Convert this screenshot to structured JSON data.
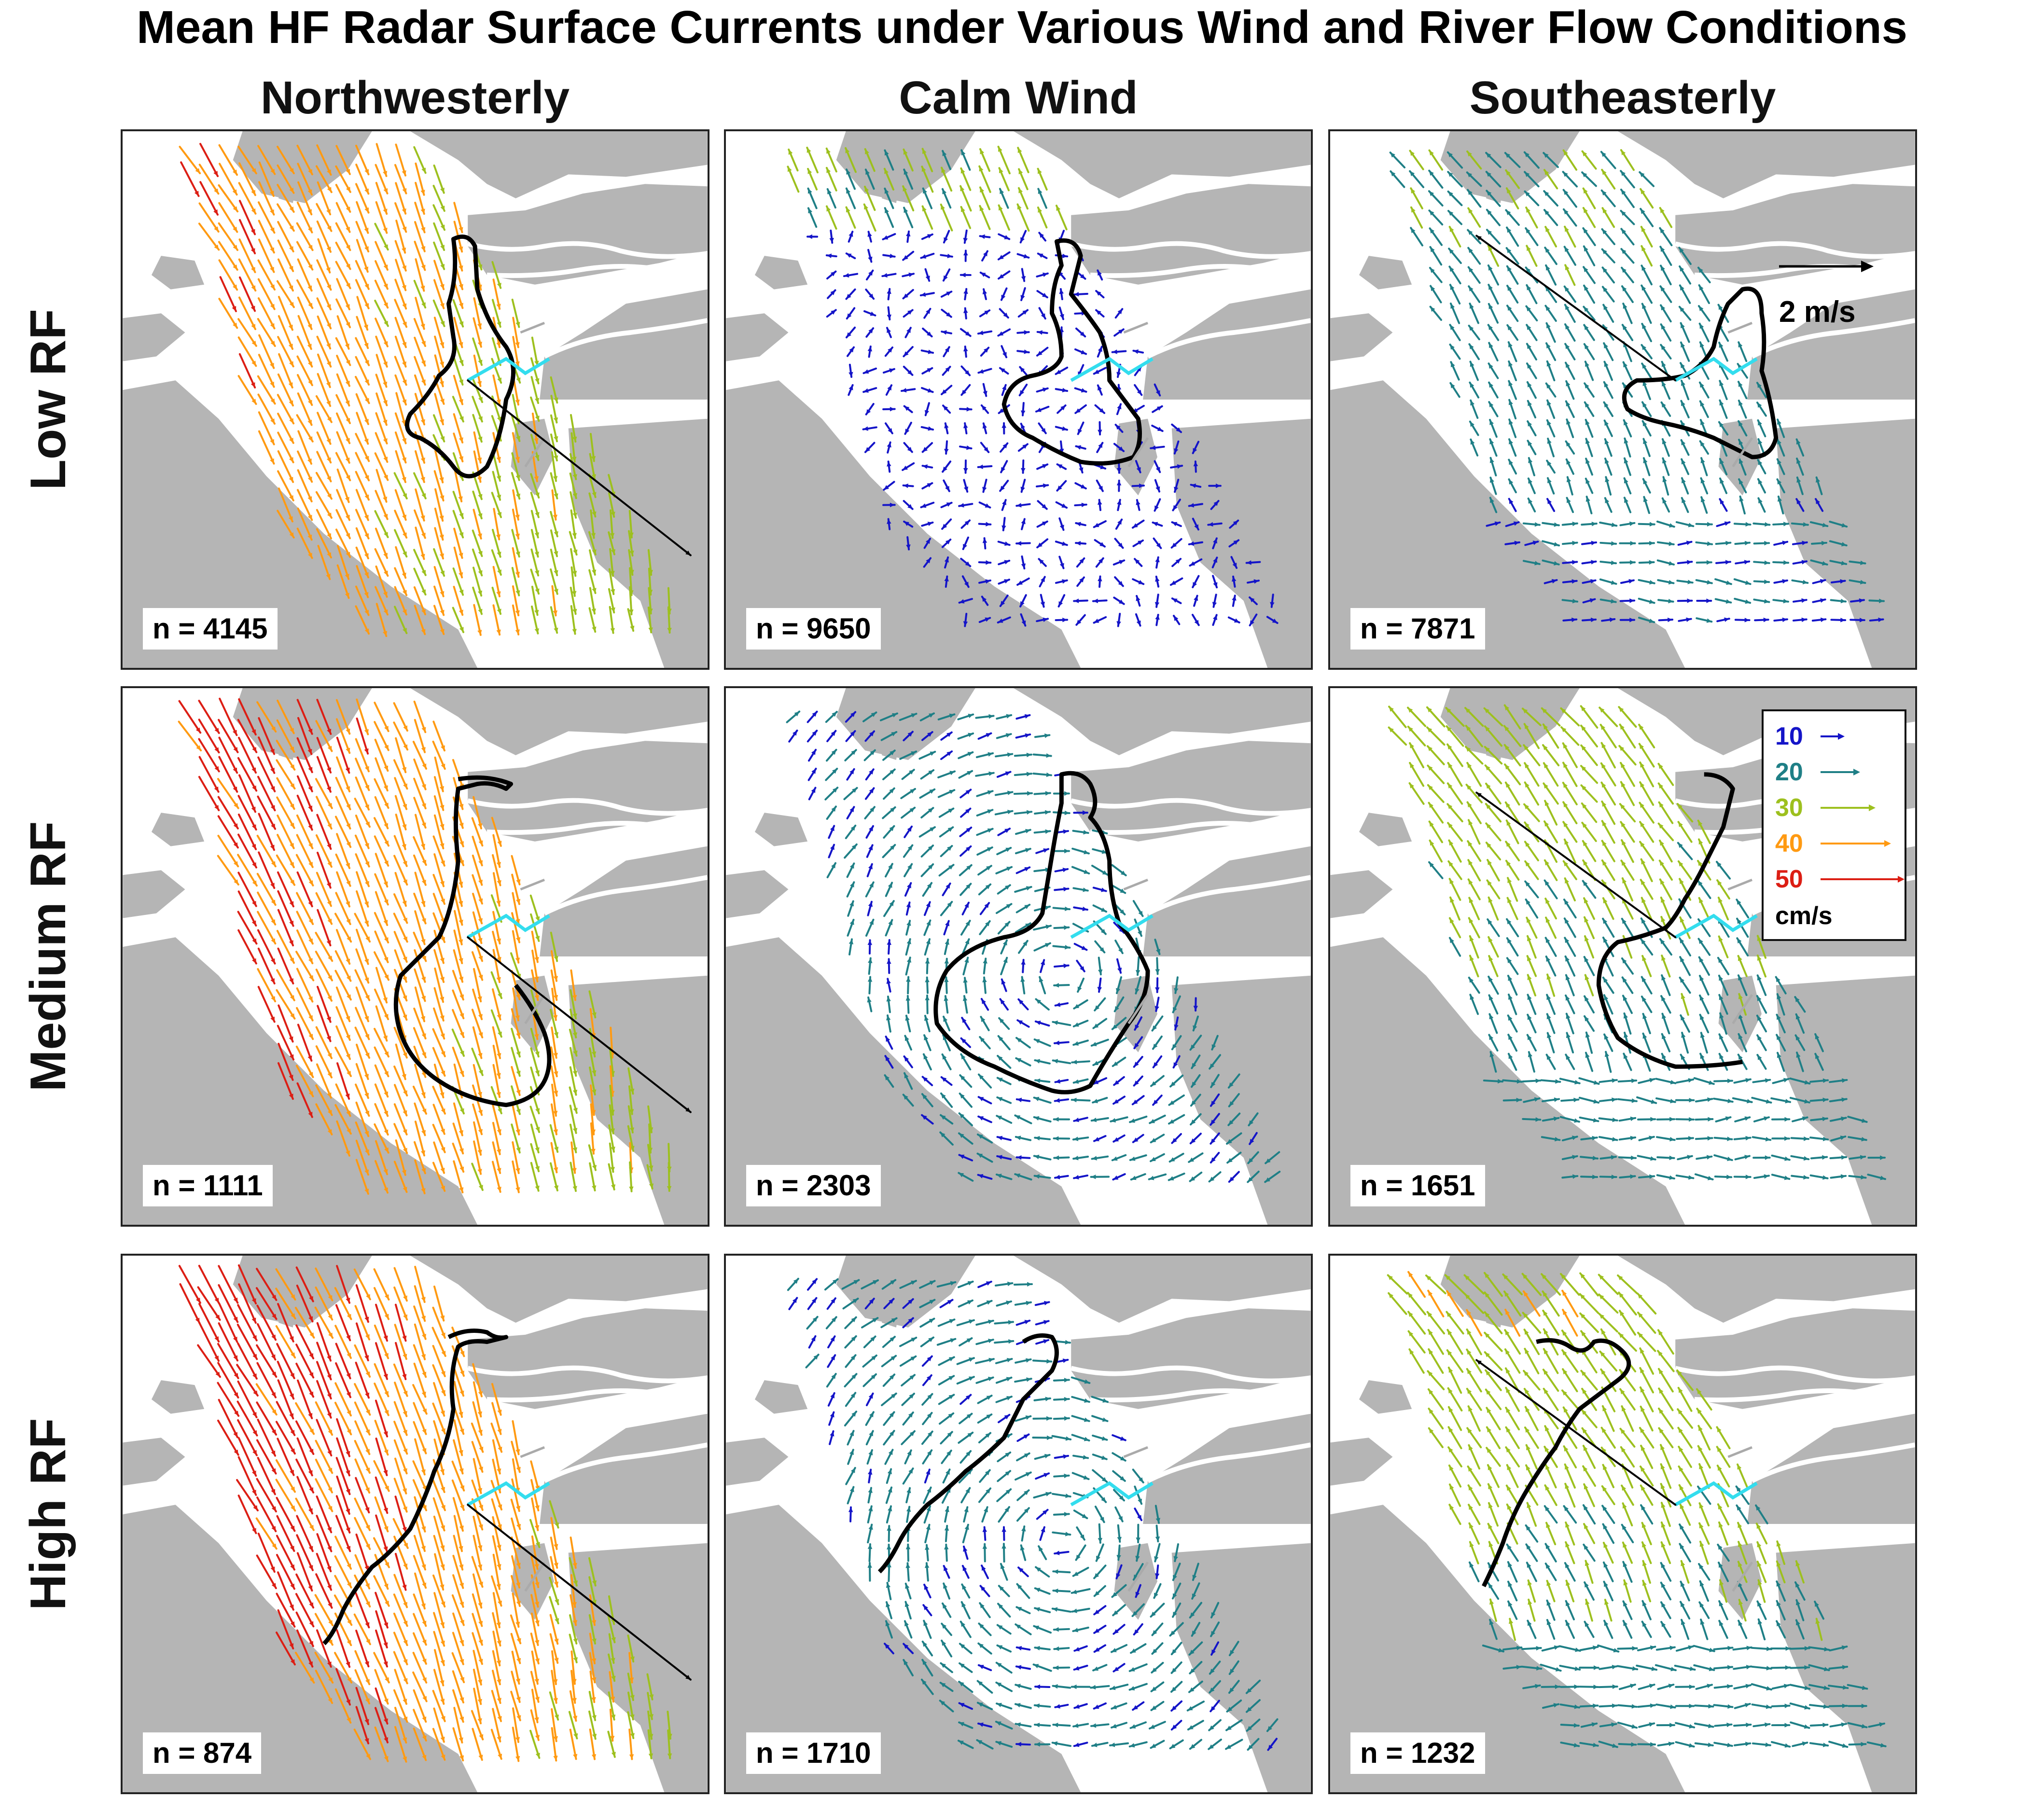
{
  "title": "Mean HF Radar Surface Currents under Various Wind and River Flow Conditions",
  "columns": [
    "Northwesterly",
    "Calm Wind",
    "Southeasterly"
  ],
  "rows": [
    "Low RF",
    "Medium RF",
    "High RF"
  ],
  "panels": [
    {
      "wind": "Northwesterly",
      "river_flow": "Low RF",
      "n_label": "n = 4145",
      "flow": "south",
      "speed": 0.78,
      "plume": "nw_low",
      "axis_dir": "se"
    },
    {
      "wind": "Calm Wind",
      "river_flow": "Low RF",
      "n_label": "n = 9650",
      "flow": "calm",
      "speed": 0.18,
      "plume": "calm_low",
      "axis_dir": "none"
    },
    {
      "wind": "Southeasterly",
      "river_flow": "Low RF",
      "n_label": "n = 7871",
      "flow": "north",
      "speed": 0.42,
      "plume": "se_low",
      "axis_dir": "nw"
    },
    {
      "wind": "Northwesterly",
      "river_flow": "Medium RF",
      "n_label": "n = 1111",
      "flow": "south",
      "speed": 0.86,
      "plume": "nw_med",
      "axis_dir": "se"
    },
    {
      "wind": "Calm Wind",
      "river_flow": "Medium RF",
      "n_label": "n = 2303",
      "flow": "gyre",
      "speed": 0.3,
      "plume": "calm_med",
      "axis_dir": "none"
    },
    {
      "wind": "Southeasterly",
      "river_flow": "Medium RF",
      "n_label": "n = 1651",
      "flow": "north",
      "speed": 0.55,
      "plume": "se_med",
      "axis_dir": "nw"
    },
    {
      "wind": "Northwesterly",
      "river_flow": "High RF",
      "n_label": "n = 874",
      "flow": "south",
      "speed": 0.92,
      "plume": "nw_high",
      "axis_dir": "se"
    },
    {
      "wind": "Calm Wind",
      "river_flow": "High RF",
      "n_label": "n = 1710",
      "flow": "gyre",
      "speed": 0.32,
      "plume": "calm_high",
      "axis_dir": "none"
    },
    {
      "wind": "Southeasterly",
      "river_flow": "High RF",
      "n_label": "n = 1232",
      "flow": "north",
      "speed": 0.6,
      "plume": "se_high",
      "axis_dir": "nw"
    }
  ],
  "scale_arrow": {
    "label": "2 m/s"
  },
  "legend": {
    "entries": [
      {
        "label": "10",
        "color": "#1414c8"
      },
      {
        "label": "20",
        "color": "#1f7f86"
      },
      {
        "label": "30",
        "color": "#9dc01e"
      },
      {
        "label": "40",
        "color": "#ff9a12"
      },
      {
        "label": "50",
        "color": "#dc1e14"
      }
    ],
    "unit": "cm/s"
  },
  "colors": {
    "land": "#b5b5b5",
    "water": "#ffffff",
    "transect": "#33ddee",
    "plume_outline": "#000000",
    "wind_arrow": "#000000",
    "river_arrow": "#aaaaaa"
  }
}
